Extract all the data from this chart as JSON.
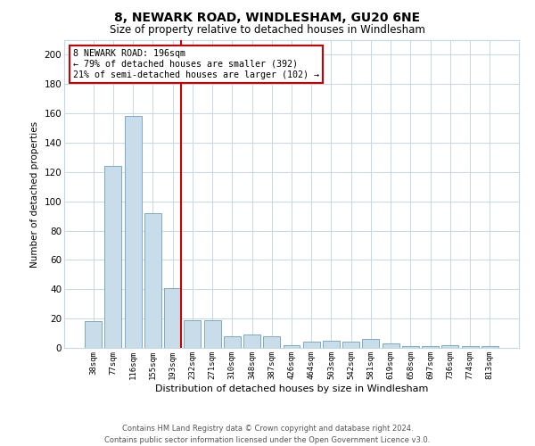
{
  "title": "8, NEWARK ROAD, WINDLESHAM, GU20 6NE",
  "subtitle": "Size of property relative to detached houses in Windlesham",
  "xlabel": "Distribution of detached houses by size in Windlesham",
  "ylabel": "Number of detached properties",
  "categories": [
    "38sqm",
    "77sqm",
    "116sqm",
    "155sqm",
    "193sqm",
    "232sqm",
    "271sqm",
    "310sqm",
    "348sqm",
    "387sqm",
    "426sqm",
    "464sqm",
    "503sqm",
    "542sqm",
    "581sqm",
    "619sqm",
    "658sqm",
    "697sqm",
    "736sqm",
    "774sqm",
    "813sqm"
  ],
  "values": [
    18,
    124,
    158,
    92,
    41,
    19,
    19,
    8,
    9,
    8,
    2,
    4,
    5,
    4,
    6,
    3,
    1,
    1,
    2,
    1,
    1
  ],
  "bar_color": "#c9dcea",
  "bar_edge_color": "#6a9fc0",
  "highlight_line_color": "#cc0000",
  "highlight_bar_index": 4,
  "ylim": [
    0,
    210
  ],
  "yticks": [
    0,
    20,
    40,
    60,
    80,
    100,
    120,
    140,
    160,
    180,
    200
  ],
  "annotation_text": "8 NEWARK ROAD: 196sqm\n← 79% of detached houses are smaller (392)\n21% of semi-detached houses are larger (102) →",
  "annotation_box_color": "#cc0000",
  "footer_line1": "Contains HM Land Registry data © Crown copyright and database right 2024.",
  "footer_line2": "Contains public sector information licensed under the Open Government Licence v3.0.",
  "background_color": "#ffffff",
  "grid_color": "#c5d8e8"
}
